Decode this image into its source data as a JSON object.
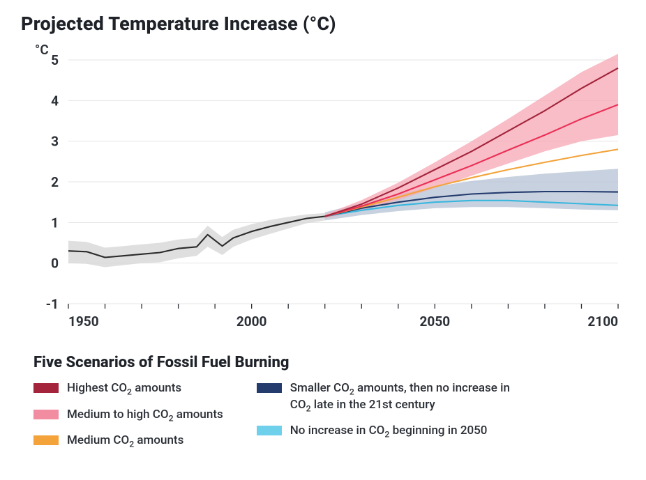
{
  "chart": {
    "type": "line",
    "title": "Projected Temperature Increase (°C)",
    "y_axis_label": "°C",
    "background_color": "#ffffff",
    "grid_color": "#e4e4e5",
    "axis_color": "#2b2f36",
    "title_fontsize": 27,
    "label_fontsize": 19,
    "xlim": [
      1950,
      2100
    ],
    "ylim": [
      -1,
      5
    ],
    "ytick_step": 1,
    "yticks": [
      -1,
      0,
      1,
      2,
      3,
      4,
      5
    ],
    "xticks": [
      1950,
      2000,
      2050,
      2100
    ],
    "xminor_step": 10,
    "line_width": 2.1,
    "historical": {
      "color": "#2b2b2b",
      "band_color": "#d9d9d9",
      "x": [
        1950,
        1955,
        1960,
        1965,
        1970,
        1975,
        1980,
        1985,
        1988,
        1992,
        1995,
        2000,
        2005,
        2010,
        2015,
        2020
      ],
      "y": [
        0.3,
        0.28,
        0.14,
        0.18,
        0.22,
        0.26,
        0.36,
        0.4,
        0.7,
        0.42,
        0.62,
        0.78,
        0.9,
        1.0,
        1.1,
        1.15
      ],
      "band_lo": [
        0.0,
        -0.02,
        -0.1,
        -0.05,
        0.0,
        0.02,
        0.12,
        0.18,
        0.4,
        0.2,
        0.4,
        0.58,
        0.72,
        0.85,
        0.98,
        1.05
      ],
      "band_hi": [
        0.55,
        0.52,
        0.38,
        0.42,
        0.46,
        0.5,
        0.58,
        0.62,
        0.92,
        0.64,
        0.82,
        0.96,
        1.06,
        1.14,
        1.2,
        1.23
      ]
    },
    "series": [
      {
        "id": "highest",
        "color": "#a3243b",
        "x": [
          2020,
          2030,
          2040,
          2050,
          2060,
          2070,
          2080,
          2090,
          2100
        ],
        "y": [
          1.15,
          1.45,
          1.85,
          2.3,
          2.75,
          3.25,
          3.75,
          4.3,
          4.8
        ]
      },
      {
        "id": "med_high",
        "color": "#eb2e55",
        "x": [
          2020,
          2030,
          2040,
          2050,
          2060,
          2070,
          2080,
          2090,
          2100
        ],
        "y": [
          1.15,
          1.4,
          1.7,
          2.05,
          2.4,
          2.78,
          3.15,
          3.55,
          3.9
        ]
      },
      {
        "id": "medium",
        "color": "#f3a33a",
        "x": [
          2020,
          2030,
          2040,
          2050,
          2060,
          2070,
          2080,
          2090,
          2100
        ],
        "y": [
          1.15,
          1.38,
          1.62,
          1.88,
          2.1,
          2.3,
          2.48,
          2.65,
          2.8
        ]
      },
      {
        "id": "smaller",
        "color": "#233b6d",
        "x": [
          2020,
          2030,
          2040,
          2050,
          2060,
          2070,
          2080,
          2090,
          2100
        ],
        "y": [
          1.15,
          1.35,
          1.5,
          1.62,
          1.7,
          1.74,
          1.76,
          1.76,
          1.75
        ]
      },
      {
        "id": "no_increase",
        "color": "#38b7de",
        "x": [
          2020,
          2030,
          2040,
          2050,
          2060,
          2070,
          2080,
          2090,
          2100
        ],
        "y": [
          1.15,
          1.3,
          1.42,
          1.5,
          1.54,
          1.54,
          1.5,
          1.46,
          1.42
        ]
      }
    ],
    "bands": [
      {
        "id": "high_band",
        "color": "#f6aab7",
        "opacity": 0.78,
        "x": [
          2020,
          2030,
          2040,
          2050,
          2060,
          2070,
          2080,
          2090,
          2100
        ],
        "lo": [
          1.1,
          1.3,
          1.55,
          1.85,
          2.15,
          2.45,
          2.75,
          3.0,
          3.15
        ],
        "hi": [
          1.2,
          1.55,
          1.98,
          2.48,
          3.0,
          3.55,
          4.12,
          4.7,
          5.15
        ]
      },
      {
        "id": "low_band",
        "color": "#b8c4d6",
        "opacity": 0.78,
        "x": [
          2020,
          2030,
          2040,
          2050,
          2060,
          2070,
          2080,
          2090,
          2100
        ],
        "lo": [
          1.05,
          1.18,
          1.28,
          1.35,
          1.38,
          1.38,
          1.35,
          1.32,
          1.3
        ],
        "hi": [
          1.25,
          1.48,
          1.7,
          1.88,
          2.02,
          2.12,
          2.2,
          2.26,
          2.32
        ]
      }
    ]
  },
  "legend": {
    "title": "Five Scenarios of Fossil Fuel Burning",
    "left": [
      {
        "color": "#a3243b",
        "label_html": "Highest CO<sub>2</sub> amounts"
      },
      {
        "color": "#f28ca0",
        "label_html": "Medium to high CO<sub>2</sub> amounts"
      },
      {
        "color": "#f3a33a",
        "label_html": "Medium CO<sub>2</sub> amounts"
      }
    ],
    "right": [
      {
        "color": "#233b6d",
        "label_html": "Smaller CO<sub>2</sub> amounts, then no increase in CO<sub>2</sub> late in the 21st century"
      },
      {
        "color": "#6fd0ec",
        "label_html": "No increase in CO<sub>2</sub> beginning in 2050"
      }
    ]
  }
}
